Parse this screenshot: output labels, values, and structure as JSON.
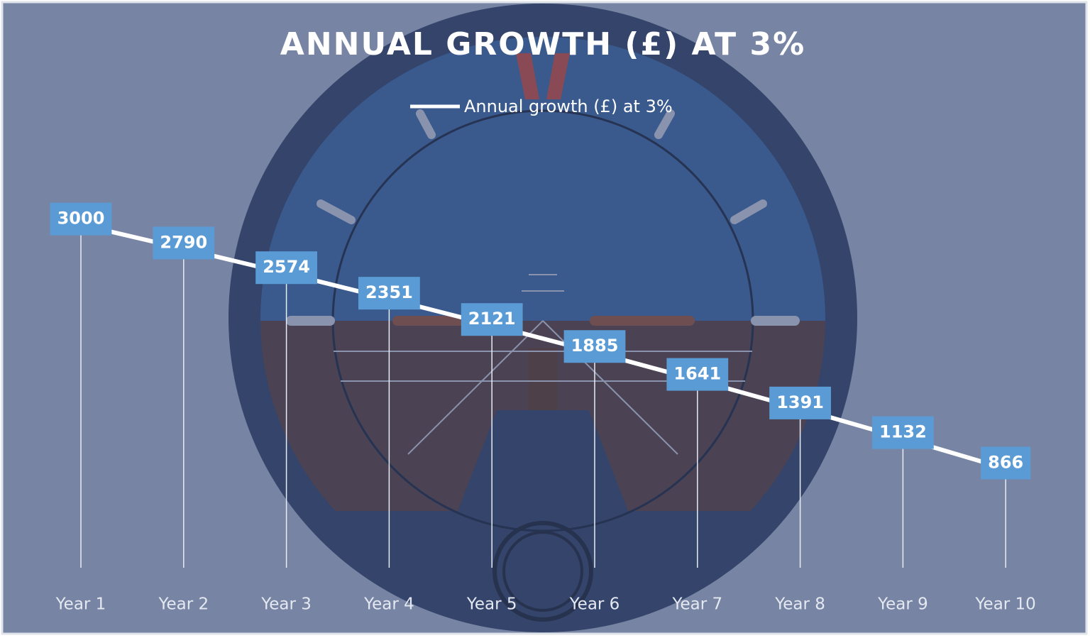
{
  "chart_data": {
    "type": "line",
    "title": "ANNUAL GROWTH (£) AT 3%",
    "categories": [
      "Year 1",
      "Year 2",
      "Year 3",
      "Year 4",
      "Year 5",
      "Year 6",
      "Year 7",
      "Year 8",
      "Year 9",
      "Year 10"
    ],
    "series": [
      {
        "name": "Annual growth (£) at 3%",
        "color": "#ffffff",
        "values": [
          3000,
          2790,
          2574,
          2351,
          2121,
          1885,
          1641,
          1391,
          1132,
          866
        ]
      }
    ],
    "ylim": [
      0,
      3500
    ],
    "legend": "top",
    "data_labels": true,
    "drop_lines": true
  }
}
